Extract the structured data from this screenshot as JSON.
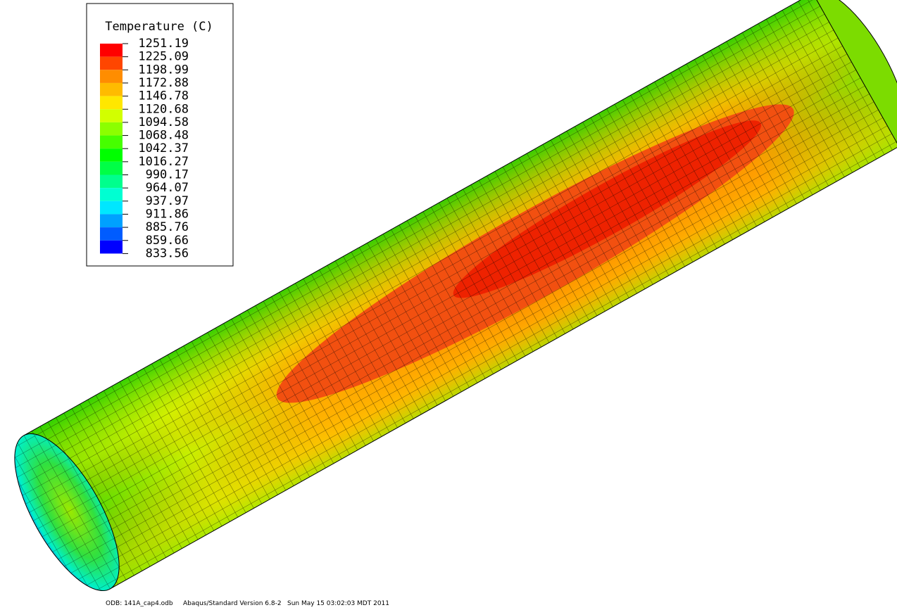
{
  "legend": {
    "title": "Temperature (C)",
    "labels": [
      "1251.19",
      "1225.09",
      "1198.99",
      "1172.88",
      "1146.78",
      "1120.68",
      "1094.58",
      "1068.48",
      "1042.37",
      "1016.27",
      "990.17",
      "964.07",
      "937.97",
      "911.86",
      "885.76",
      "859.66",
      "833.56"
    ],
    "colors": [
      "#ff0000",
      "#ff4600",
      "#ff8d00",
      "#ffbb00",
      "#ffe700",
      "#d2ff00",
      "#8cff00",
      "#46ff00",
      "#00ff00",
      "#00ff46",
      "#00ff8d",
      "#00ffd2",
      "#00e7ff",
      "#00a1ff",
      "#005cff",
      "#0000ff"
    ]
  },
  "footer": {
    "odb": "ODB: 141A_cap4.odb",
    "version": "Abaqus/Standard Version 6.8-2",
    "date": "Sun May 15 03:02:03 MDT 2011"
  }
}
